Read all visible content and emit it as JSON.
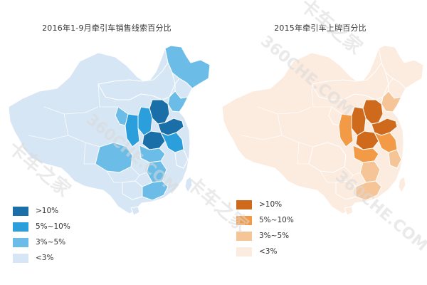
{
  "left_map": {
    "title": "2016年1-9月牵引车销售线索百分比",
    "legend": [
      {
        "label": ">10%",
        "color": "#1a6fa8"
      },
      {
        "label": "5%~10%",
        "color": "#2b9fdb"
      },
      {
        "label": "3%~5%",
        "color": "#6bbde8"
      },
      {
        "label": "<3%",
        "color": "#d6e6f4"
      }
    ],
    "border_color": "#ffffff"
  },
  "right_map": {
    "title": "2015年牵引车上牌百分比",
    "legend": [
      {
        "label": ">10%",
        "color": "#cf6a1d"
      },
      {
        "label": "5%~10%",
        "color": "#f39a46"
      },
      {
        "label": "3%~5%",
        "color": "#f6c597"
      },
      {
        "label": "<3%",
        "color": "#fcebdf"
      }
    ],
    "border_color": "#ffffff"
  },
  "watermark": {
    "text": "360CHE.COM",
    "brand": "卡车之家",
    "color": "#d9d9d9"
  }
}
